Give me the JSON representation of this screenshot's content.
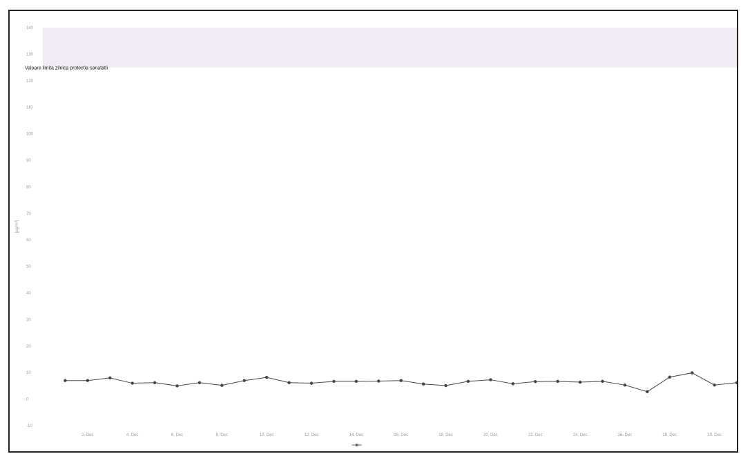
{
  "chart_data": {
    "type": "line",
    "title": "",
    "ylabel": "[µg/m³]",
    "xlabel": "",
    "ylim": [
      -10,
      140
    ],
    "yticks": [
      -10,
      0,
      10,
      20,
      30,
      40,
      50,
      60,
      70,
      80,
      90,
      100,
      110,
      120,
      130,
      140
    ],
    "ytick_labels": [
      "-10",
      "0",
      "10",
      "20",
      "30",
      "40",
      "50",
      "60",
      "70",
      "80",
      "90",
      "100",
      "110",
      "120",
      "130",
      "140"
    ],
    "x_range": [
      0,
      31
    ],
    "xticks": [
      2,
      4,
      6,
      8,
      10,
      12,
      14,
      16,
      18,
      20,
      22,
      24,
      26,
      28,
      30
    ],
    "xtick_labels": [
      "2. Dec",
      "4. Dec",
      "6. Dec",
      "8. Dec",
      "10. Dec",
      "12. Dec",
      "14. Dec",
      "16. Dec",
      "18. Dec",
      "20. Dec",
      "22. Dec",
      "24. Dec",
      "26. Dec",
      "28. Dec",
      "30. Dec"
    ],
    "threshold_band": {
      "from": 125,
      "to": 140,
      "color": "#f1e9f4"
    },
    "annotation": "Valoare limita zilnica protectia sanatatii",
    "grid": false,
    "legend_position": "bottom-center",
    "series": [
      {
        "name": "",
        "color": "#444444",
        "x": [
          1,
          2,
          3,
          4,
          5,
          6,
          7,
          8,
          9,
          10,
          11,
          12,
          13,
          14,
          15,
          16,
          17,
          18,
          19,
          20,
          21,
          22,
          23,
          24,
          25,
          26,
          27,
          28,
          29,
          30,
          31
        ],
        "values": [
          7,
          7,
          8,
          6,
          6.2,
          5,
          6.2,
          5.2,
          7,
          8.2,
          6.2,
          6,
          6.7,
          6.7,
          6.8,
          7,
          5.7,
          5.1,
          6.7,
          7.3,
          5.8,
          6.6,
          6.7,
          6.4,
          6.7,
          5.3,
          2.8,
          8.3,
          9.9,
          5.3,
          6.2
        ]
      }
    ]
  }
}
